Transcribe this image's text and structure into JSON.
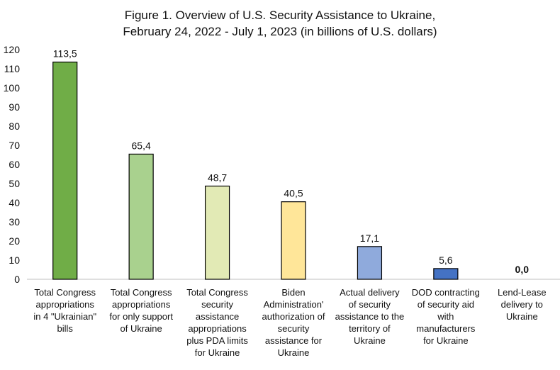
{
  "chart_data": {
    "type": "bar",
    "title_lines": [
      "Figure 1. Overview of U.S. Security Assistance to Ukraine,",
      "February 24, 2022 - July 1, 2023 (in billions of U.S. dollars)"
    ],
    "categories": [
      "Total Congress appropriations in 4 \"Ukrainian\" bills",
      "Total Congress appropriations for only support of Ukraine",
      "Total Congress security assistance appropriations plus PDA limits for Ukraine",
      "Biden Administration' authorization of security assistance for Ukraine",
      "Actual delivery of security assistance to the territory of Ukraine",
      "DOD contracting of security aid with manufacturers for Ukraine",
      "Lend-Lease delivery to Ukraine"
    ],
    "category_lines": [
      [
        "Total Congress",
        "appropriations",
        "in 4 \"Ukrainian\"",
        "bills"
      ],
      [
        "Total Congress",
        "appropriations",
        "for only support",
        "of Ukraine"
      ],
      [
        "Total Congress",
        "security",
        "assistance",
        "appropriations",
        "plus PDA limits",
        "for Ukraine"
      ],
      [
        "Biden",
        "Administration'",
        "authorization of",
        "security",
        "assistance for",
        "Ukraine"
      ],
      [
        "Actual delivery",
        "of security",
        "assistance to the",
        "territory of",
        "Ukraine"
      ],
      [
        "DOD contracting",
        "of security aid",
        "with",
        "manufacturers",
        "for Ukraine"
      ],
      [
        "Lend-Lease",
        "delivery to",
        "Ukraine"
      ]
    ],
    "values": [
      113.5,
      65.4,
      48.7,
      40.5,
      17.1,
      5.6,
      0.0
    ],
    "value_labels": [
      "113,5",
      "65,4",
      "48,7",
      "40,5",
      "17,1",
      "5,6",
      "0,0"
    ],
    "bar_colors": [
      "#70ad47",
      "#a9d18e",
      "#e2eab5",
      "#ffe699",
      "#8faadc",
      "#4472c4",
      "#4472c4"
    ],
    "label_colors": [
      "#111111",
      "#111111",
      "#111111",
      "#111111",
      "#111111",
      "#111111",
      "#ff0000"
    ],
    "ylim": [
      0,
      120
    ],
    "yticks": [
      0,
      10,
      20,
      30,
      40,
      50,
      60,
      70,
      80,
      90,
      100,
      110,
      120
    ],
    "xlabel": "",
    "ylabel": "",
    "grid": false,
    "legend": "none"
  }
}
